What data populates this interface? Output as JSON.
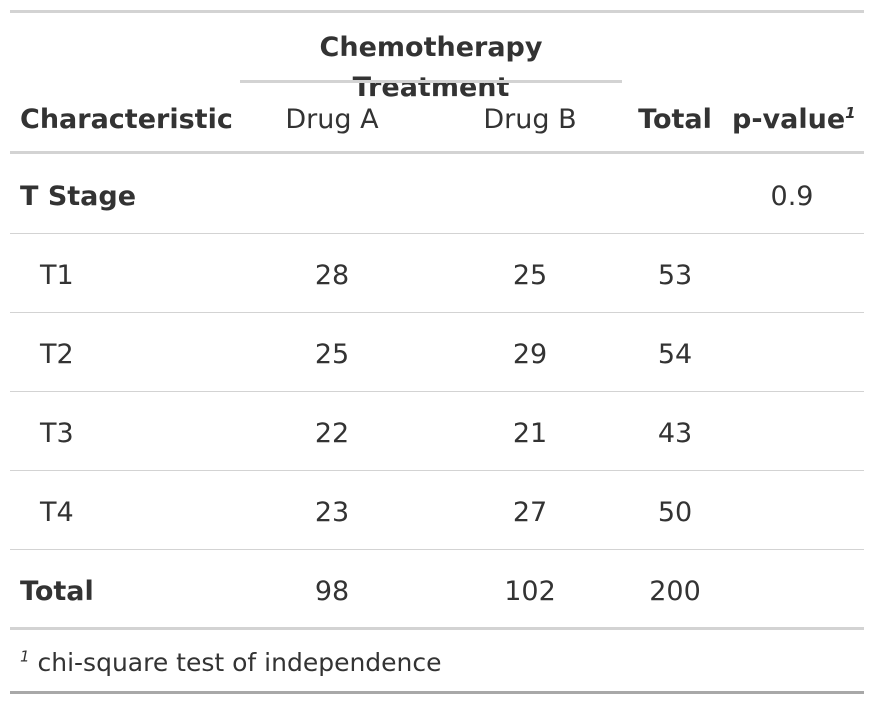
{
  "table": {
    "spanner_label": "Chemotherapy Treatment",
    "columns": {
      "characteristic": "Characteristic",
      "drug_a": "Drug A",
      "drug_b": "Drug B",
      "total": "Total",
      "p_value": "p-value",
      "p_value_mark": "1"
    },
    "group": {
      "label": "T Stage",
      "p_value": "0.9"
    },
    "rows": [
      {
        "label": "T1",
        "drug_a": "28",
        "drug_b": "25",
        "total": "53"
      },
      {
        "label": "T2",
        "drug_a": "25",
        "drug_b": "29",
        "total": "54"
      },
      {
        "label": "T3",
        "drug_a": "22",
        "drug_b": "21",
        "total": "43"
      },
      {
        "label": "T4",
        "drug_a": "23",
        "drug_b": "27",
        "total": "50"
      }
    ],
    "total_row": {
      "label": "Total",
      "drug_a": "98",
      "drug_b": "102",
      "total": "200"
    },
    "footnote": {
      "mark": "1",
      "text": "chi-square test of independence"
    }
  },
  "colors": {
    "text": "#333333",
    "rule": "#d3d3d3"
  }
}
